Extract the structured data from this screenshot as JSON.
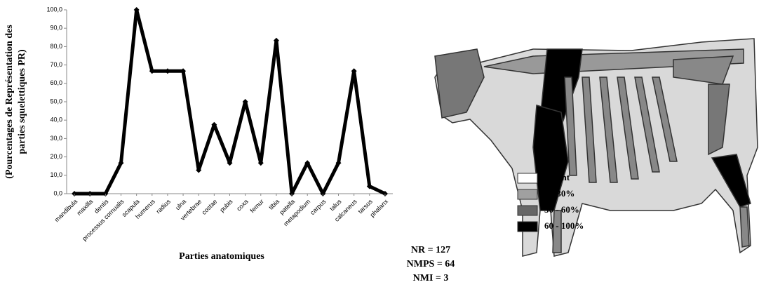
{
  "chart_data": {
    "type": "line",
    "ylabel": [
      "(Pourcentages de Représentation des",
      "parties squelettiques PR)"
    ],
    "xlabel": "Parties anatomiques",
    "categories": [
      "mandibula",
      "maxilla",
      "dentis",
      "processus cornualis",
      "scapula",
      "humerus",
      "radius",
      "ulna",
      "vertebrae",
      "costae",
      "pubis",
      "coxa",
      "femur",
      "tibia",
      "patella",
      "metapodium",
      "carpus",
      "talus",
      "calcaneus",
      "tarsus",
      "phalanx"
    ],
    "values": [
      0,
      0,
      0,
      16.7,
      100,
      66.7,
      66.7,
      66.7,
      12.8,
      37.5,
      16.7,
      50,
      16.7,
      83.3,
      0,
      16.7,
      0,
      16.7,
      66.7,
      4,
      0
    ],
    "color": "#000000",
    "ylim": [
      0,
      100
    ],
    "yticks": [
      {
        "value": 0,
        "label": "0,0"
      },
      {
        "value": 10,
        "label": "10,0"
      },
      {
        "value": 20,
        "label": "20,0"
      },
      {
        "value": 30,
        "label": "30,0"
      },
      {
        "value": 40,
        "label": "40,0"
      },
      {
        "value": 50,
        "label": "50,0"
      },
      {
        "value": 60,
        "label": "60,0"
      },
      {
        "value": 70,
        "label": "70,0"
      },
      {
        "value": 80,
        "label": "80,0"
      },
      {
        "value": 90,
        "label": "90,0"
      },
      {
        "value": 100,
        "label": "100,0"
      }
    ],
    "legend": [
      {
        "name": "absent",
        "color": "#ffffff"
      },
      {
        "name": "0 - 30%",
        "color": "#a0a0a0"
      },
      {
        "name": "30 - 60%",
        "color": "#666666"
      },
      {
        "name": "60 - 100%",
        "color": "#000000"
      }
    ],
    "stats": [
      "NR = 127",
      "NMPS = 64",
      "NMI = 3"
    ]
  }
}
